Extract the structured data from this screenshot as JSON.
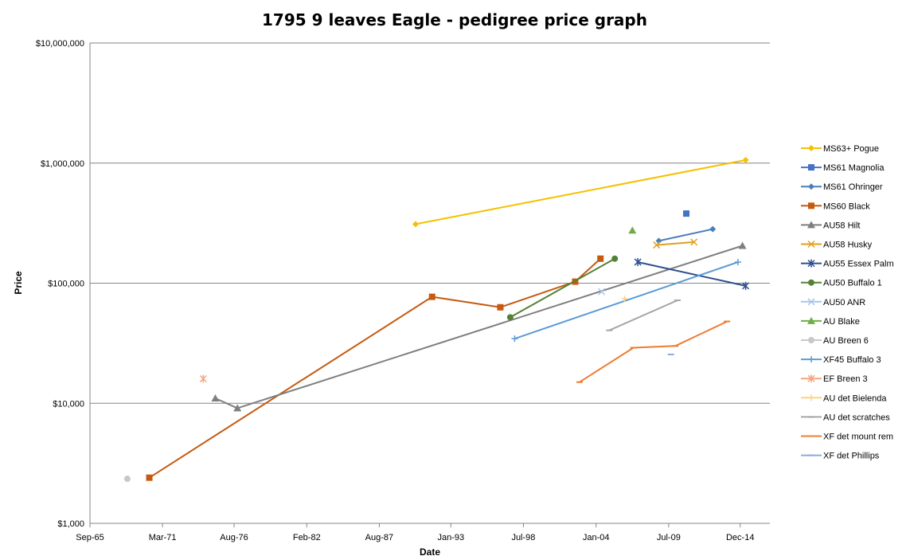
{
  "chart_data": {
    "type": "line",
    "title": "1795 9 leaves Eagle - pedigree price graph",
    "xlabel": "Date",
    "ylabel": "Price",
    "y_scale": "log",
    "ylim": [
      1000,
      10000000
    ],
    "xlim": [
      "1965-09-01",
      "2017-03-01"
    ],
    "x_ticks": [
      {
        "date": "1965-09-01",
        "label": "Sep-65"
      },
      {
        "date": "1971-03-01",
        "label": "Mar-71"
      },
      {
        "date": "1976-08-01",
        "label": "Aug-76"
      },
      {
        "date": "1982-02-01",
        "label": "Feb-82"
      },
      {
        "date": "1987-08-01",
        "label": "Aug-87"
      },
      {
        "date": "1993-01-01",
        "label": "Jan-93"
      },
      {
        "date": "1998-07-01",
        "label": "Jul-98"
      },
      {
        "date": "2004-01-01",
        "label": "Jan-04"
      },
      {
        "date": "2009-07-01",
        "label": "Jul-09"
      },
      {
        "date": "2014-12-01",
        "label": "Dec-14"
      }
    ],
    "y_ticks": [
      {
        "value": 1000,
        "label": "$1,000"
      },
      {
        "value": 10000,
        "label": "$10,000"
      },
      {
        "value": 100000,
        "label": "$100,000"
      },
      {
        "value": 1000000,
        "label": "$1,000,000"
      },
      {
        "value": 10000000,
        "label": "$10,000,000"
      }
    ],
    "grid": "horizontal",
    "legend_position": "right",
    "series": [
      {
        "name": "MS63+ Pogue",
        "color": "#F6C000",
        "marker": "diamond",
        "points": [
          [
            "1990-05-01",
            310000
          ],
          [
            "2015-05-01",
            1060000
          ]
        ]
      },
      {
        "name": "MS61 Magnolia",
        "color": "#4472C4",
        "marker": "square",
        "points": [
          [
            "2010-11-01",
            380000
          ]
        ]
      },
      {
        "name": "MS61 Ohringer",
        "color": "#4A7EBB",
        "marker": "diamond",
        "points": [
          [
            "2008-10-01",
            225000
          ],
          [
            "2012-11-01",
            282000
          ]
        ]
      },
      {
        "name": "MS60 Black",
        "color": "#C55A11",
        "marker": "square",
        "points": [
          [
            "1970-03-01",
            2400
          ],
          [
            "1991-08-01",
            77000
          ],
          [
            "1996-10-01",
            63000
          ],
          [
            "2002-06-01",
            103000
          ],
          [
            "2004-05-01",
            160000
          ]
        ]
      },
      {
        "name": "AU58 Hilt",
        "color": "#7F7F7F",
        "marker": "triangle",
        "points": [
          [
            "1975-03-01",
            11000
          ],
          [
            "1976-11-01",
            9100
          ],
          [
            "2015-02-01",
            205000
          ]
        ]
      },
      {
        "name": "AU58 Husky",
        "color": "#E0A020",
        "marker": "x",
        "points": [
          [
            "2008-08-01",
            208000
          ],
          [
            "2011-06-01",
            220000
          ]
        ]
      },
      {
        "name": "AU55 Essex Palm",
        "color": "#2E4F8F",
        "marker": "star",
        "points": [
          [
            "2007-03-01",
            150000
          ],
          [
            "2015-05-01",
            95000
          ]
        ]
      },
      {
        "name": "AU50 Buffalo 1",
        "color": "#548235",
        "marker": "circle",
        "points": [
          [
            "1997-07-01",
            52000
          ],
          [
            "2005-06-01",
            160000
          ]
        ]
      },
      {
        "name": "AU50 ANR",
        "color": "#A9C4E8",
        "marker": "x",
        "points": [
          [
            "2004-06-01",
            85000
          ]
        ]
      },
      {
        "name": "AU Blake",
        "color": "#70AD47",
        "marker": "triangle",
        "points": [
          [
            "2006-10-01",
            275000
          ]
        ]
      },
      {
        "name": "AU Breen 6",
        "color": "#C8C8C8",
        "marker": "circle",
        "points": [
          [
            "1968-07-01",
            2350
          ]
        ]
      },
      {
        "name": "XF45 Buffalo 3",
        "color": "#5B9BD5",
        "marker": "plus",
        "points": [
          [
            "1997-11-01",
            34500
          ],
          [
            "2014-10-01",
            150000
          ]
        ]
      },
      {
        "name": "EF  Breen 3",
        "color": "#F4A582",
        "marker": "star",
        "points": [
          [
            "1974-04-01",
            16000
          ]
        ]
      },
      {
        "name": "AU det Bielenda",
        "color": "#FFD280",
        "marker": "plus",
        "points": [
          [
            "2006-03-01",
            74000
          ]
        ]
      },
      {
        "name": "AU det scratches",
        "color": "#A6A6A6",
        "marker": "dash",
        "points": [
          [
            "2005-01-01",
            40500
          ],
          [
            "2010-03-01",
            72000
          ]
        ]
      },
      {
        "name": "XF det mount rem",
        "color": "#ED7D31",
        "marker": "dash",
        "points": [
          [
            "2002-10-01",
            15000
          ],
          [
            "2006-11-01",
            29000
          ],
          [
            "2010-01-01",
            30000
          ],
          [
            "2013-12-01",
            48000
          ]
        ]
      },
      {
        "name": "XF det Phillips",
        "color": "#8FAADC",
        "marker": "dash",
        "points": [
          [
            "2009-09-01",
            25500
          ]
        ]
      }
    ]
  }
}
